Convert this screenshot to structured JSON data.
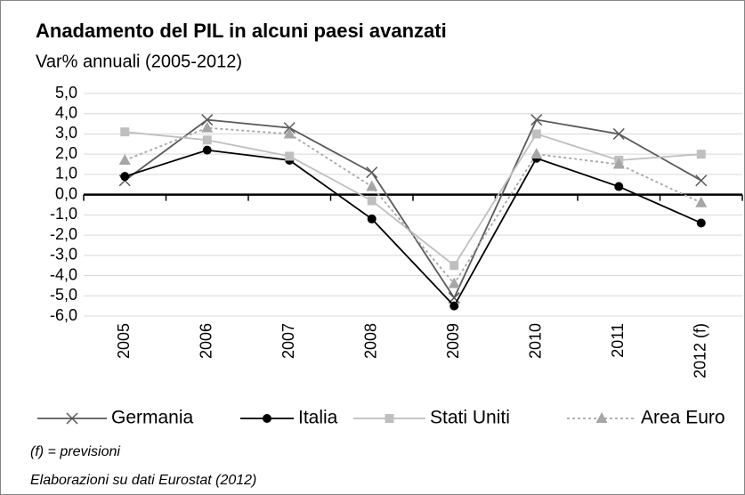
{
  "chart_data": {
    "type": "line",
    "title": "Anadamento del PIL in alcuni paesi avanzati",
    "subtitle": "Var% annuali (2005-2012)",
    "categories": [
      "2005",
      "2006",
      "2007",
      "2008",
      "2009",
      "2010",
      "2011",
      "2012 (f)"
    ],
    "series": [
      {
        "name": "Germania",
        "color": "#595959",
        "marker": "x",
        "dash": "solid",
        "values": [
          0.7,
          3.7,
          3.3,
          1.1,
          -5.1,
          3.7,
          3.0,
          0.7
        ]
      },
      {
        "name": "Italia",
        "color": "#000000",
        "marker": "circle",
        "dash": "solid",
        "values": [
          0.9,
          2.2,
          1.7,
          -1.2,
          -5.5,
          1.8,
          0.4,
          -1.4
        ]
      },
      {
        "name": "Stati Uniti",
        "color": "#bfbfbf",
        "marker": "square",
        "dash": "solid",
        "values": [
          3.1,
          2.7,
          1.9,
          -0.3,
          -3.5,
          3.0,
          1.7,
          2.0
        ]
      },
      {
        "name": "Area Euro",
        "color": "#a6a6a6",
        "marker": "triangle",
        "dash": "dotted",
        "values": [
          1.7,
          3.3,
          3.0,
          0.4,
          -4.4,
          2.0,
          1.5,
          -0.4
        ]
      }
    ],
    "ylim": [
      -6,
      5
    ],
    "yticks": [
      {
        "value": -6,
        "label": "-6,0"
      },
      {
        "value": -5,
        "label": "-5,0"
      },
      {
        "value": -4,
        "label": "-4,0"
      },
      {
        "value": -3,
        "label": "-3,0"
      },
      {
        "value": -2,
        "label": "-2,0"
      },
      {
        "value": -1,
        "label": "-1,0"
      },
      {
        "value": 0,
        "label": "0,0"
      },
      {
        "value": 1,
        "label": "1,0"
      },
      {
        "value": 2,
        "label": "2,0"
      },
      {
        "value": 3,
        "label": "3,0"
      },
      {
        "value": 4,
        "label": "4,0"
      },
      {
        "value": 5,
        "label": "5,0"
      }
    ],
    "grid": true,
    "legend": "bottom",
    "notes": [
      "(f) = previsioni",
      "Elaborazioni su dati Eurostat (2012)"
    ]
  }
}
